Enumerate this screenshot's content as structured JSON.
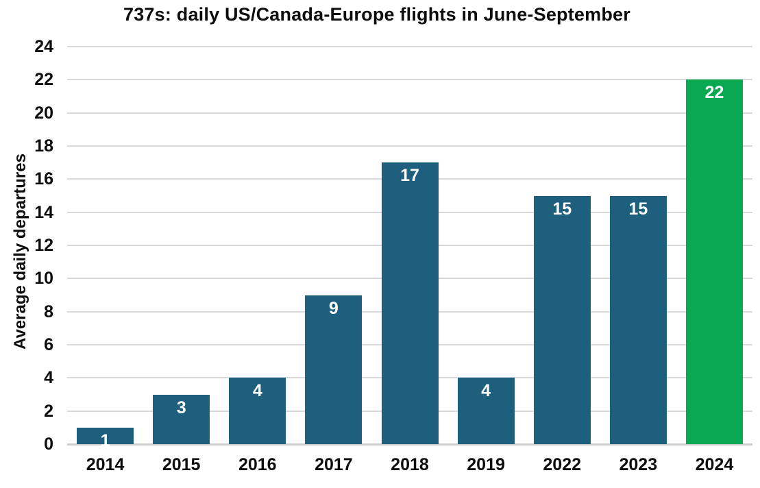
{
  "chart_data": {
    "type": "bar",
    "title": "737s: daily US/Canada-Europe flights in June-September",
    "xlabel": "",
    "ylabel": "Average daily departures",
    "categories": [
      "2014",
      "2015",
      "2016",
      "2017",
      "2018",
      "2019",
      "2022",
      "2023",
      "2024"
    ],
    "values": [
      1,
      3,
      4,
      9,
      17,
      4,
      15,
      15,
      22
    ],
    "value_labels": [
      "1",
      "3",
      "4",
      "9",
      "17",
      "4",
      "15",
      "15",
      "22"
    ],
    "ylim": [
      0,
      24
    ],
    "ytick_step": 2,
    "grid": true,
    "legend_position": "none",
    "highlight_category": "2024",
    "colors": {
      "bar_default": "#1e5f7e",
      "bar_highlight": "#09a851",
      "gridline": "#d9d9d9",
      "axis_line": "#cdcdcd",
      "text": "#0d0d0d",
      "value_label": "#ffffff"
    }
  }
}
